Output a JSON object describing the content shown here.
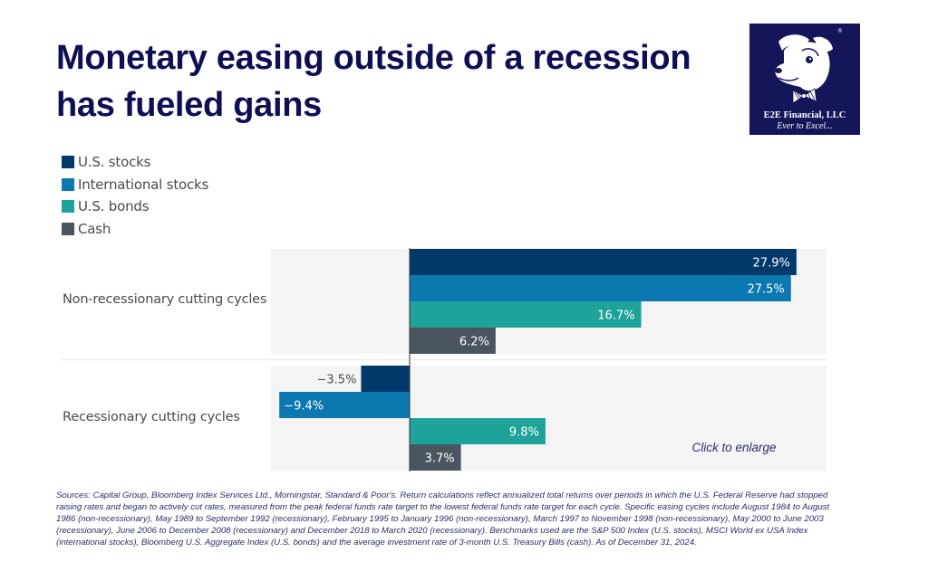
{
  "header": {
    "title": "Monetary easing outside of a recession has fueled gains"
  },
  "logo": {
    "brand": "E2E Financial, LLC",
    "tagline": "Ever to Excel...",
    "registered": "®",
    "icon": "dog-with-bowtie-icon"
  },
  "chart_data": {
    "type": "bar",
    "orientation": "horizontal",
    "title": "Monetary easing outside of a recession has fueled gains",
    "categories": [
      "Non-recessionary cutting cycles",
      "Recessionary cutting cycles"
    ],
    "series": [
      {
        "name": "U.S. stocks",
        "color": "#003a6b",
        "values": [
          27.9,
          -3.5
        ],
        "labels": [
          "27.9%",
          "−3.5%"
        ]
      },
      {
        "name": "International stocks",
        "color": "#0b78b0",
        "values": [
          27.5,
          -9.4
        ],
        "labels": [
          "27.5%",
          "−9.4%"
        ]
      },
      {
        "name": "U.S. bonds",
        "color": "#1ea39a",
        "values": [
          16.7,
          9.8
        ],
        "labels": [
          "16.7%",
          "9.8%"
        ]
      },
      {
        "name": "Cash",
        "color": "#4a5560",
        "values": [
          6.2,
          3.7
        ],
        "labels": [
          "6.2%",
          "3.7%"
        ]
      }
    ],
    "xlim": [
      -10,
      30
    ],
    "unit": "%",
    "grid": false,
    "legend_position": "top-left",
    "xlabel": "",
    "ylabel": ""
  },
  "legend": [
    {
      "label": "U.S. stocks",
      "color": "#003a6b"
    },
    {
      "label": "International stocks",
      "color": "#0b78b0"
    },
    {
      "label": "U.S. bonds",
      "color": "#1ea39a"
    },
    {
      "label": "Cash",
      "color": "#4a5560"
    }
  ],
  "enlarge_link": "Click to enlarge",
  "footnote": "Sources: Capital Group, Bloomberg Index Services Ltd., Morningstar, Standard & Poor's. Return calculations reflect annualized total returns over periods in which the U.S. Federal Reserve had stopped raising rates and began to actively cut rates, measured from the peak federal funds rate target to the lowest federal funds rate target for each cycle. Specific easing cycles include August 1984 to August 1986 (non-recessionary), May 1989 to September 1992 (recessionary), February 1995 to January 1996 (non-recessionary), March 1997 to November 1998 (non-recessionary), May 2000 to June 2003 (recessionary), June 2006 to December 2008 (recessionary) and December 2018 to March 2020 (recessionary). Benchmarks used are the S&P 500 Index (U.S. stocks), MSCI World ex USA Index (international stocks), Bloomberg U.S. Aggregate Index (U.S. bonds) and the average investment rate of 3-month U.S. Treasury Bills (cash). As of December 31, 2024.",
  "colors": {
    "title": "#0d0f55",
    "panel": "#f4f4f5"
  }
}
